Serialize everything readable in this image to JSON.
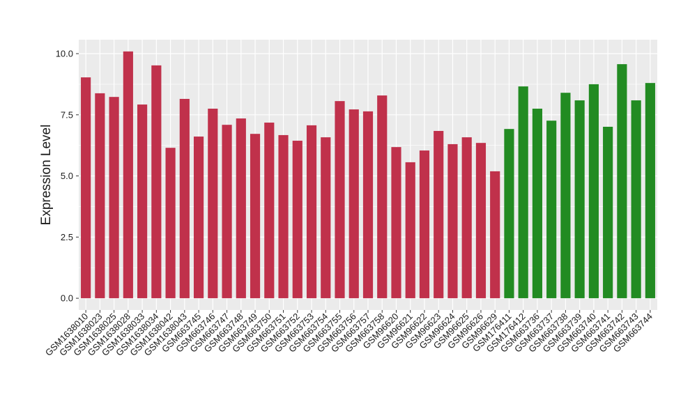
{
  "chart_data": {
    "type": "bar",
    "y_label": "Expression Level",
    "categories": [
      "GSM1638010",
      "GSM1638023",
      "GSM1638025",
      "GSM1638028",
      "GSM1638033",
      "GSM1638034",
      "GSM1638042",
      "GSM1638043",
      "GSM663745",
      "GSM663746",
      "GSM663747",
      "GSM663748",
      "GSM663749",
      "GSM663750",
      "GSM663751",
      "GSM663752",
      "GSM663753",
      "GSM663754",
      "GSM663755",
      "GSM663756",
      "GSM663757",
      "GSM663758",
      "GSM96620",
      "GSM96621",
      "GSM96622",
      "GSM96623",
      "GSM96624",
      "GSM96625",
      "GSM96626",
      "GSM96629",
      "GSM176411",
      "GSM176412",
      "GSM663736",
      "GSM663737",
      "GSM663738",
      "GSM663739",
      "GSM663740",
      "GSM663741",
      "GSM663742",
      "GSM663743",
      "GSM663744"
    ],
    "values": [
      9.03,
      8.38,
      8.23,
      10.09,
      7.92,
      9.52,
      6.15,
      8.15,
      6.61,
      7.75,
      7.09,
      7.35,
      6.72,
      7.18,
      6.67,
      6.44,
      7.07,
      6.58,
      8.06,
      7.72,
      7.64,
      8.29,
      6.18,
      5.56,
      6.04,
      6.84,
      6.3,
      6.58,
      6.35,
      5.19,
      6.92,
      8.66,
      7.75,
      7.26,
      8.4,
      8.09,
      8.75,
      7.01,
      9.57,
      8.09,
      8.8
    ],
    "colors": [
      "#c0314b",
      "#c0314b",
      "#c0314b",
      "#c0314b",
      "#c0314b",
      "#c0314b",
      "#c0314b",
      "#c0314b",
      "#c0314b",
      "#c0314b",
      "#c0314b",
      "#c0314b",
      "#c0314b",
      "#c0314b",
      "#c0314b",
      "#c0314b",
      "#c0314b",
      "#c0314b",
      "#c0314b",
      "#c0314b",
      "#c0314b",
      "#c0314b",
      "#c0314b",
      "#c0314b",
      "#c0314b",
      "#c0314b",
      "#c0314b",
      "#c0314b",
      "#c0314b",
      "#c0314b",
      "#228b22",
      "#228b22",
      "#228b22",
      "#228b22",
      "#228b22",
      "#228b22",
      "#228b22",
      "#228b22",
      "#228b22",
      "#228b22",
      "#228b22"
    ],
    "ylim": [
      -0.48,
      10.57
    ],
    "yticks": [
      {
        "value": 0,
        "label": "0.0"
      },
      {
        "value": 2.5,
        "label": "2.5"
      },
      {
        "value": 5,
        "label": "5.0"
      },
      {
        "value": 7.5,
        "label": "7.5"
      },
      {
        "value": 10,
        "label": "10.0"
      }
    ],
    "grid": true
  }
}
